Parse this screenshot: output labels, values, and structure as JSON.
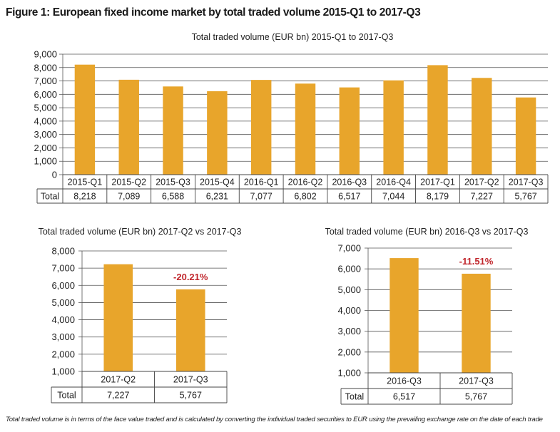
{
  "figure": {
    "title": "Figure 1: European fixed income market by total traded volume 2015-Q1 to 2017-Q3",
    "footnote": "Total traded volume is in terms of the face value traded and is calculated by converting the individual traded securities to EUR using the prevailing exchange rate on the date of each trade"
  },
  "chart_data": [
    {
      "type": "bar",
      "title": "Total traded volume (EUR bn) 2015-Q1 to 2017-Q3",
      "categories": [
        "2015-Q1",
        "2015-Q2",
        "2015-Q3",
        "2015-Q4",
        "2016-Q1",
        "2016-Q2",
        "2016-Q3",
        "2016-Q4",
        "2017-Q1",
        "2017-Q2",
        "2017-Q3"
      ],
      "series": [
        {
          "name": "Total",
          "values": [
            8218,
            7089,
            6588,
            6231,
            7077,
            6802,
            6517,
            7044,
            8179,
            7227,
            5767
          ]
        }
      ],
      "value_labels": [
        "8,218",
        "7,089",
        "6,588",
        "6,231",
        "7,077",
        "6,802",
        "6,517",
        "7,044",
        "8,179",
        "7,227",
        "5,767"
      ],
      "ylim": [
        0,
        9000
      ],
      "yticks": [
        "0",
        "1,000",
        "2,000",
        "3,000",
        "4,000",
        "5,000",
        "6,000",
        "7,000",
        "8,000",
        "9,000"
      ],
      "ytick_values": [
        0,
        1000,
        2000,
        3000,
        4000,
        5000,
        6000,
        7000,
        8000,
        9000
      ],
      "table_row_label": "Total",
      "grid": true,
      "bar_color": "#e8a52b"
    },
    {
      "type": "bar",
      "title": "Total traded volume (EUR bn) 2017-Q2 vs 2017-Q3",
      "categories": [
        "2017-Q2",
        "2017-Q3"
      ],
      "series": [
        {
          "name": "Total",
          "values": [
            7227,
            5767
          ]
        }
      ],
      "value_labels": [
        "7,227",
        "5,767"
      ],
      "annotation": "-20.21%",
      "ylim": [
        1000,
        8000
      ],
      "yticks": [
        "1,000",
        "2,000",
        "3,000",
        "4,000",
        "5,000",
        "6,000",
        "7,000",
        "8,000"
      ],
      "ytick_values": [
        1000,
        2000,
        3000,
        4000,
        5000,
        6000,
        7000,
        8000
      ],
      "table_row_label": "Total",
      "grid": true,
      "bar_color": "#e8a52b",
      "annotation_color": "#c0252b"
    },
    {
      "type": "bar",
      "title": "Total traded volume (EUR bn) 2016-Q3 vs 2017-Q3",
      "categories": [
        "2016-Q3",
        "2017-Q3"
      ],
      "series": [
        {
          "name": "Total",
          "values": [
            6517,
            5767
          ]
        }
      ],
      "value_labels": [
        "6,517",
        "5,767"
      ],
      "annotation": "-11.51%",
      "ylim": [
        1000,
        7000
      ],
      "yticks": [
        "1,000",
        "2,000",
        "3,000",
        "4,000",
        "5,000",
        "6,000",
        "7,000"
      ],
      "ytick_values": [
        1000,
        2000,
        3000,
        4000,
        5000,
        6000,
        7000
      ],
      "table_row_label": "Total",
      "grid": true,
      "bar_color": "#e8a52b",
      "annotation_color": "#c0252b"
    }
  ]
}
